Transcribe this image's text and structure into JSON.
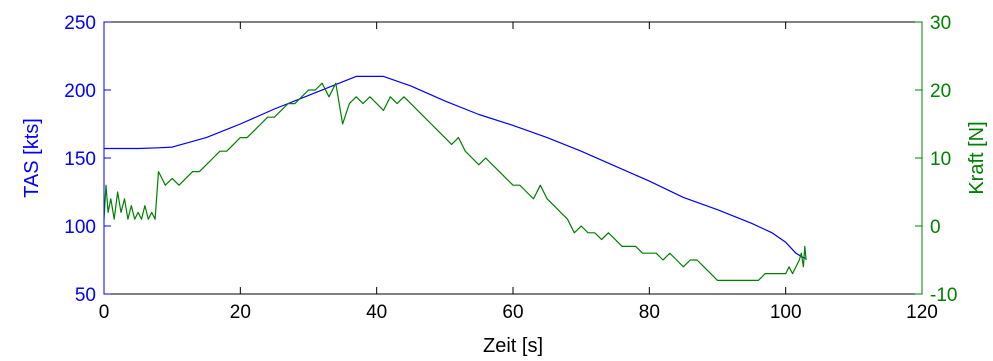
{
  "chart_data": {
    "type": "line",
    "title": "",
    "xlabel": "Zeit [s]",
    "ylabel_left": "TAS [kts]",
    "ylabel_right": "Kraft [N]",
    "xlim": [
      0,
      120
    ],
    "ylim_left": [
      50,
      250
    ],
    "ylim_right": [
      -10,
      30
    ],
    "x_ticks": [
      "0",
      "20",
      "40",
      "60",
      "80",
      "100",
      "120"
    ],
    "y_ticks_left": [
      "50",
      "100",
      "150",
      "200",
      "250"
    ],
    "y_ticks_right": [
      "-10",
      "0",
      "10",
      "20",
      "30"
    ],
    "grid": false,
    "legend": "none",
    "colors": {
      "left_axis": "#0000ff",
      "right_axis": "#008000",
      "frame": "#000000"
    },
    "series": [
      {
        "axis": "left",
        "color": "#0000ff",
        "x": [
          0,
          5,
          8,
          10,
          15,
          20,
          25,
          30,
          35,
          37,
          41,
          45,
          50,
          55,
          60,
          65,
          70,
          75,
          80,
          85,
          90,
          95,
          98,
          100,
          101.5,
          102.5,
          103
        ],
        "y": [
          157,
          157,
          157.5,
          158,
          165,
          175,
          186,
          196,
          206,
          210,
          210,
          203,
          192,
          182,
          174,
          165,
          155,
          144,
          133,
          121,
          112,
          102,
          95,
          88,
          80,
          77,
          76
        ]
      },
      {
        "axis": "right",
        "color": "#008000",
        "x": [
          0,
          0.3,
          0.6,
          1,
          1.5,
          2,
          2.5,
          3,
          3.5,
          4,
          4.5,
          5,
          5.5,
          6,
          6.5,
          7,
          7.5,
          8,
          9,
          10,
          11,
          12,
          13,
          14,
          15,
          16,
          17,
          18,
          19,
          20,
          21,
          22,
          23,
          24,
          25,
          26,
          27,
          28,
          29,
          30,
          31,
          32,
          33,
          34,
          35,
          36,
          37,
          38,
          39,
          40,
          41,
          42,
          43,
          44,
          45,
          46,
          47,
          48,
          49,
          50,
          51,
          52,
          53,
          54,
          55,
          56,
          57,
          58,
          59,
          60,
          61,
          62,
          63,
          64,
          65,
          66,
          67,
          68,
          69,
          70,
          71,
          72,
          73,
          74,
          75,
          76,
          77,
          78,
          79,
          80,
          81,
          82,
          83,
          84,
          85,
          86,
          87,
          88,
          89,
          90,
          91,
          92,
          93,
          94,
          95,
          96,
          97,
          98,
          99,
          100,
          100.5,
          101,
          101.5,
          102,
          102.3,
          102.6,
          102.8,
          103
        ],
        "y": [
          1,
          6,
          2,
          4,
          1,
          5,
          2,
          4,
          1,
          3,
          1,
          2,
          1,
          3,
          1,
          2,
          1,
          8,
          6,
          7,
          6,
          7,
          8,
          8,
          9,
          10,
          11,
          11,
          12,
          13,
          13,
          14,
          15,
          16,
          16,
          17,
          18,
          18,
          19,
          20,
          20,
          21,
          19,
          21,
          15,
          18,
          19,
          18,
          19,
          18,
          17,
          19,
          18,
          19,
          18,
          17,
          16,
          15,
          14,
          13,
          12,
          13,
          11,
          10,
          9,
          10,
          9,
          8,
          7,
          6,
          6,
          5,
          4,
          6,
          4,
          3,
          2,
          1,
          -1,
          0,
          -1,
          -1,
          -2,
          -1,
          -2,
          -3,
          -3,
          -3,
          -4,
          -4,
          -4,
          -5,
          -4,
          -5,
          -6,
          -5,
          -5,
          -6,
          -7,
          -8,
          -8,
          -8,
          -8,
          -8,
          -8,
          -8,
          -7,
          -7,
          -7,
          -7,
          -6,
          -7,
          -6,
          -5,
          -4,
          -6,
          -3,
          -5
        ]
      }
    ]
  }
}
